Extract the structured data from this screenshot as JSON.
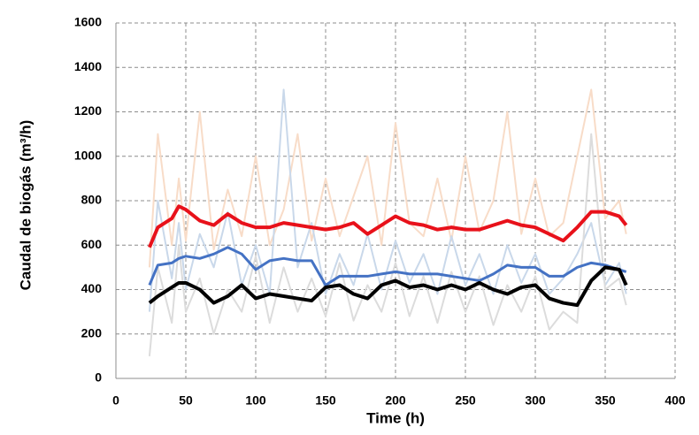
{
  "chart_data": {
    "type": "line",
    "x_label": "Time (h)",
    "y_label": "Caudal de biogás (m³/h)",
    "x": [
      24,
      30,
      40,
      45,
      50,
      60,
      70,
      80,
      90,
      100,
      110,
      120,
      130,
      140,
      150,
      160,
      170,
      180,
      190,
      200,
      210,
      220,
      230,
      240,
      250,
      260,
      270,
      280,
      290,
      300,
      310,
      320,
      330,
      340,
      350,
      360,
      365
    ],
    "series": [
      {
        "color": "#f8dcc8",
        "width": 2,
        "values": [
          500,
          1100,
          600,
          900,
          620,
          1200,
          580,
          850,
          640,
          1000,
          600,
          760,
          1100,
          620,
          900,
          640,
          820,
          1000,
          600,
          1150,
          700,
          640,
          900,
          620,
          1000,
          660,
          800,
          1200,
          650,
          900,
          640,
          700,
          1000,
          1300,
          720,
          800,
          650
        ]
      },
      {
        "color": "#c9d8ea",
        "width": 2,
        "values": [
          300,
          800,
          450,
          700,
          400,
          650,
          500,
          750,
          420,
          600,
          380,
          1300,
          500,
          700,
          380,
          560,
          420,
          650,
          400,
          620,
          430,
          560,
          380,
          640,
          420,
          560,
          380,
          600,
          430,
          560,
          380,
          450,
          560,
          700,
          420,
          520,
          380
        ]
      },
      {
        "color": "#dcdcdc",
        "width": 2,
        "values": [
          100,
          500,
          250,
          600,
          300,
          450,
          200,
          400,
          300,
          550,
          250,
          500,
          300,
          450,
          280,
          520,
          260,
          420,
          300,
          520,
          280,
          460,
          250,
          480,
          300,
          460,
          240,
          420,
          300,
          460,
          220,
          300,
          250,
          1100,
          400,
          450,
          330
        ]
      },
      {
        "color": "#e8111a",
        "width": 4,
        "values": [
          590,
          680,
          720,
          775,
          760,
          710,
          690,
          740,
          700,
          680,
          680,
          700,
          690,
          680,
          670,
          680,
          700,
          650,
          690,
          730,
          700,
          690,
          670,
          680,
          670,
          670,
          690,
          710,
          690,
          680,
          650,
          620,
          680,
          750,
          750,
          730,
          690
        ]
      },
      {
        "color": "#4472c4",
        "width": 3,
        "values": [
          420,
          510,
          520,
          540,
          550,
          540,
          560,
          590,
          560,
          490,
          530,
          540,
          530,
          530,
          420,
          460,
          460,
          460,
          470,
          480,
          470,
          470,
          470,
          460,
          450,
          440,
          470,
          510,
          500,
          500,
          460,
          460,
          500,
          520,
          510,
          490,
          480
        ]
      },
      {
        "color": "#000000",
        "width": 4,
        "values": [
          340,
          370,
          410,
          430,
          430,
          400,
          340,
          370,
          420,
          360,
          380,
          370,
          360,
          350,
          410,
          420,
          380,
          360,
          420,
          440,
          410,
          420,
          400,
          420,
          400,
          430,
          400,
          380,
          410,
          420,
          360,
          340,
          330,
          440,
          500,
          490,
          420
        ]
      }
    ],
    "xlim": [
      0,
      400
    ],
    "xticks": [
      0,
      50,
      100,
      150,
      200,
      250,
      300,
      350,
      400
    ],
    "ylim": [
      0,
      1600
    ],
    "yticks": [
      0,
      200,
      400,
      600,
      800,
      1000,
      1200,
      1400,
      1600
    ],
    "grid": true
  }
}
